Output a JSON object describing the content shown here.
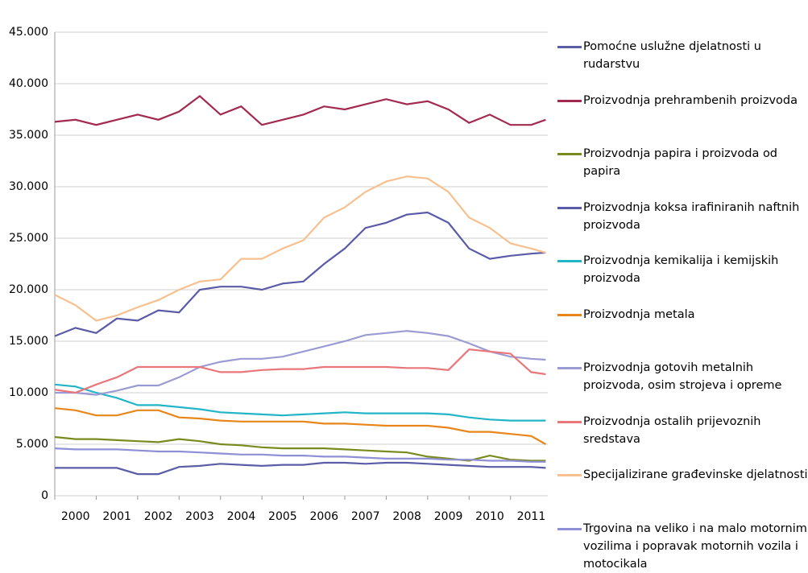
{
  "chart_data": {
    "type": "line",
    "x": [
      2000,
      2000.5,
      2001,
      2001.5,
      2002,
      2002.5,
      2003,
      2003.5,
      2004,
      2004.5,
      2005,
      2005.5,
      2006,
      2006.5,
      2007,
      2007.5,
      2008,
      2008.5,
      2009,
      2009.5,
      2010,
      2010.5,
      2011,
      2011.5,
      2011.85
    ],
    "xlim": [
      2000,
      2011.9
    ],
    "xticks": [
      2000,
      2001,
      2002,
      2003,
      2004,
      2005,
      2006,
      2007,
      2008,
      2009,
      2010,
      2011
    ],
    "ylim": [
      0,
      45000
    ],
    "yticks": [
      0,
      {
        "value": 5000,
        "label": "5.000"
      },
      {
        "value": 10000,
        "label": "10.000"
      },
      {
        "value": 15000,
        "label": "15.000"
      },
      {
        "value": 20000,
        "label": "20.000"
      },
      {
        "value": 25000,
        "label": "25.000"
      },
      {
        "value": 30000,
        "label": "30.000"
      },
      {
        "value": 35000,
        "label": "35.000"
      },
      {
        "value": 40000,
        "label": "40.000"
      },
      {
        "value": 45000,
        "label": "45.000"
      }
    ],
    "grid": true,
    "legend": "right",
    "series": [
      {
        "name": "Pomoćne uslužne djelatnosti u rudarstvu",
        "color": "#5b5ea6",
        "values": [
          2700,
          2700,
          2700,
          2700,
          2100,
          2100,
          2800,
          2900,
          3100,
          3000,
          2900,
          3000,
          3000,
          3200,
          3200,
          3100,
          3200,
          3200,
          3100,
          3000,
          2900,
          2800,
          2800,
          2800,
          2700
        ]
      },
      {
        "name": "Proizvodnja prehrambenih proizvoda",
        "color": "#a3294f",
        "values": [
          36300,
          36500,
          36000,
          36500,
          37000,
          36500,
          37300,
          38800,
          37000,
          37800,
          36000,
          36500,
          37000,
          37800,
          37500,
          38000,
          38500,
          38000,
          38300,
          37500,
          36200,
          37000,
          36000,
          36000,
          36500
        ]
      },
      {
        "name": "Proizvodnja papira i proizvoda od papira",
        "color": "#7a8a1f",
        "values": [
          5700,
          5500,
          5500,
          5400,
          5300,
          5200,
          5500,
          5300,
          5000,
          4900,
          4700,
          4600,
          4600,
          4600,
          4500,
          4400,
          4300,
          4200,
          3800,
          3600,
          3400,
          3900,
          3500,
          3400,
          3400
        ]
      },
      {
        "name": "Proizvodnja koksa irafiniranih naftnih proizvoda",
        "color": "#5a5aa8",
        "values": [
          15500,
          16300,
          15800,
          17200,
          17000,
          18000,
          17800,
          20000,
          20300,
          20300,
          20000,
          20600,
          20800,
          22500,
          24000,
          26000,
          26500,
          27300,
          27500,
          26500,
          24000,
          23000,
          23300,
          23500,
          23600
        ]
      },
      {
        "name": "Proizvodnja kemikalija i kemijskih proizvoda",
        "color": "#22b5c8",
        "values": [
          10800,
          10600,
          10000,
          9500,
          8800,
          8800,
          8600,
          8400,
          8100,
          8000,
          7900,
          7800,
          7900,
          8000,
          8100,
          8000,
          8000,
          8000,
          8000,
          7900,
          7600,
          7400,
          7300,
          7300,
          7300
        ]
      },
      {
        "name": "Proizvodnja metala",
        "color": "#e8861a",
        "values": [
          8500,
          8300,
          7800,
          7800,
          8300,
          8300,
          7600,
          7500,
          7300,
          7200,
          7200,
          7200,
          7200,
          7000,
          7000,
          6900,
          6800,
          6800,
          6800,
          6600,
          6200,
          6200,
          6000,
          5800,
          5000
        ]
      },
      {
        "name": "Proizvodnja gotovih metalnih proizvoda, osim strojeva i opreme",
        "color": "#9b9bd4",
        "values": [
          10000,
          10000,
          9800,
          10200,
          10700,
          10700,
          11500,
          12500,
          13000,
          13300,
          13300,
          13500,
          14000,
          14500,
          15000,
          15600,
          15800,
          16000,
          15800,
          15500,
          14800,
          14000,
          13500,
          13300,
          13200
        ]
      },
      {
        "name": "Proizvodnja ostalih prijevoznih sredstava",
        "color": "#e8767a",
        "values": [
          10300,
          10000,
          10800,
          11500,
          12500,
          12500,
          12500,
          12500,
          12000,
          12000,
          12200,
          12300,
          12300,
          12500,
          12500,
          12500,
          12500,
          12400,
          12400,
          12200,
          14200,
          14000,
          13800,
          12000,
          11800
        ]
      },
      {
        "name": "Specijalizirane građevinske djelatnosti",
        "color": "#f7c08f",
        "values": [
          19500,
          18500,
          17000,
          17500,
          18300,
          19000,
          20000,
          20800,
          21000,
          23000,
          23000,
          24000,
          24800,
          27000,
          28000,
          29500,
          30500,
          31000,
          30800,
          29500,
          27000,
          26000,
          24500,
          24000,
          23600
        ]
      },
      {
        "name": "Trgovina na veliko i na malo motornim vozilima i popravak motornih vozila i motocikala",
        "color": "#8f8fd6",
        "values": [
          4600,
          4500,
          4500,
          4500,
          4400,
          4300,
          4300,
          4200,
          4100,
          4000,
          4000,
          3900,
          3900,
          3800,
          3800,
          3700,
          3600,
          3600,
          3600,
          3500,
          3500,
          3400,
          3400,
          3300,
          3300
        ]
      }
    ]
  }
}
